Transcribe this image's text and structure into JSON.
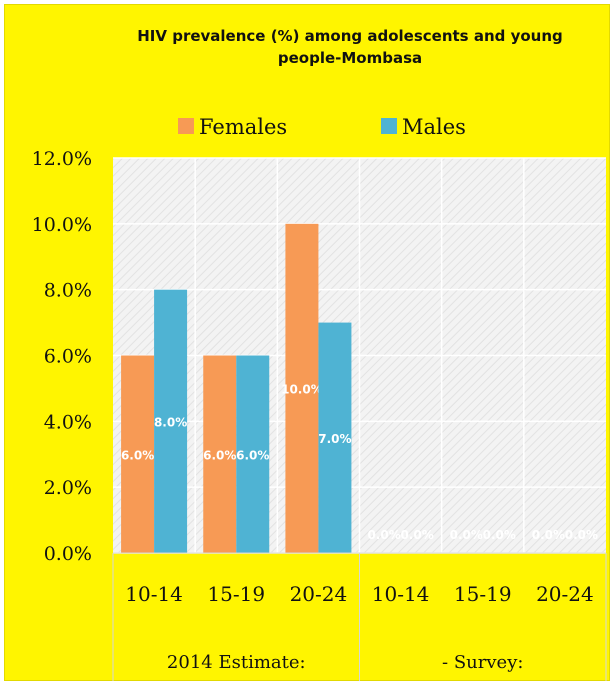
{
  "chart_data": {
    "type": "bar",
    "title": "HIV prevalence (%) among adolescents and young people-Mombasa",
    "groups": [
      {
        "label": "2014 Estimate:",
        "categories": [
          "10-14",
          "15-19",
          "20-24"
        ]
      },
      {
        "label": "- Survey:",
        "categories": [
          "10-14",
          "15-19",
          "20-24"
        ]
      }
    ],
    "categories": [
      "10-14",
      "15-19",
      "20-24",
      "10-14",
      "15-19",
      "20-24"
    ],
    "series": [
      {
        "name": "Females",
        "color": "#f79a55",
        "values": [
          6.0,
          6.0,
          10.0,
          0.0,
          0.0,
          0.0
        ],
        "labels": [
          "6.0%",
          "6.0%",
          "10.0%",
          "0.0%",
          "0.0%",
          "0.0%"
        ]
      },
      {
        "name": "Males",
        "color": "#4fb3d3",
        "values": [
          8.0,
          6.0,
          7.0,
          0.0,
          0.0,
          0.0
        ],
        "labels": [
          "8.0%",
          "6.0%",
          "7.0%",
          "0.0%",
          "0.0%",
          "0.0%"
        ]
      }
    ],
    "ylim": [
      0,
      12
    ],
    "yticks": [
      "0.0%",
      "2.0%",
      "4.0%",
      "6.0%",
      "8.0%",
      "10.0%",
      "12.0%"
    ],
    "xlabel": "",
    "ylabel": "",
    "legend_position": "top",
    "grid": true,
    "plot_background": "hatched light grey",
    "page_background": "#fff500"
  }
}
